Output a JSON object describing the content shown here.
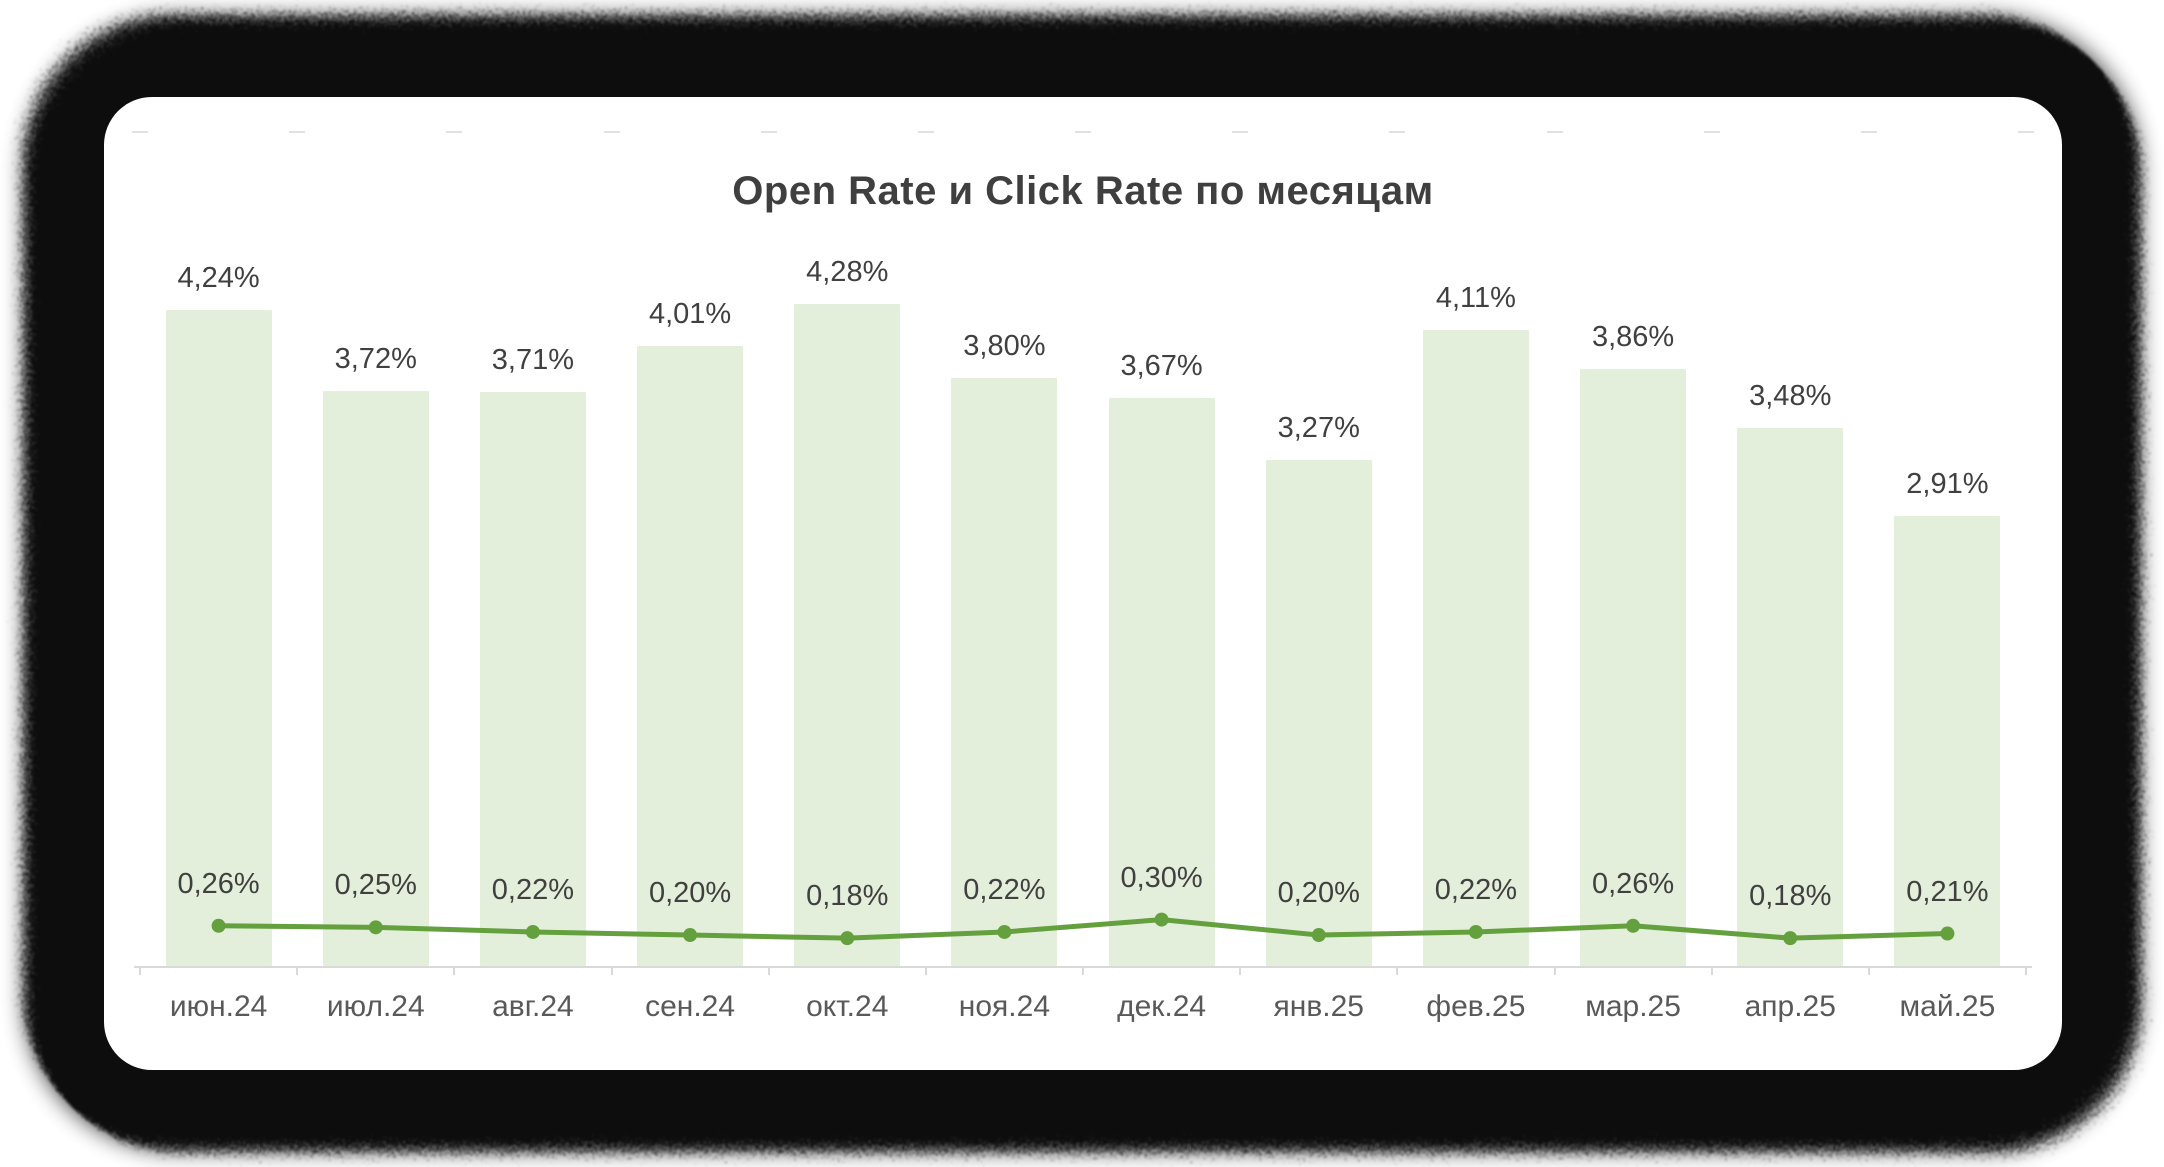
{
  "frame": {
    "outer_background": "#ffffff",
    "vignette_color": "#0b0b0b",
    "card_background": "#ffffff"
  },
  "chart_data": {
    "type": "bar",
    "title": "Open Rate и Click Rate по месяцам",
    "xlabel": "",
    "ylabel": "",
    "ylim": [
      0,
      4.6
    ],
    "grid": false,
    "legend": "none",
    "categories": [
      "июн.24",
      "июл.24",
      "авг.24",
      "сен.24",
      "окт.24",
      "ноя.24",
      "дек.24",
      "янв.25",
      "фев.25",
      "мар.25",
      "апр.25",
      "май.25"
    ],
    "series": [
      {
        "name": "Open Rate",
        "type": "bar",
        "values": [
          4.24,
          3.72,
          3.71,
          4.01,
          4.28,
          3.8,
          3.67,
          3.27,
          4.11,
          3.86,
          3.48,
          2.91
        ],
        "labels": [
          "4,24%",
          "3,72%",
          "3,71%",
          "4,01%",
          "4,28%",
          "3,80%",
          "3,67%",
          "3,27%",
          "4,11%",
          "3,86%",
          "3,48%",
          "2,91%"
        ],
        "color": "#e3efdb"
      },
      {
        "name": "Click Rate",
        "type": "line",
        "values": [
          0.26,
          0.25,
          0.22,
          0.2,
          0.18,
          0.22,
          0.3,
          0.2,
          0.22,
          0.26,
          0.18,
          0.21
        ],
        "labels": [
          "0,26%",
          "0,25%",
          "0,22%",
          "0,20%",
          "0,18%",
          "0,22%",
          "0,30%",
          "0,20%",
          "0,22%",
          "0,26%",
          "0,18%",
          "0,21%"
        ],
        "color": "#64a03e"
      }
    ],
    "colors": {
      "title": "#3f3f3f",
      "value_label": "#404040",
      "category_label": "#595959",
      "axis": "#d9d9d9"
    }
  }
}
